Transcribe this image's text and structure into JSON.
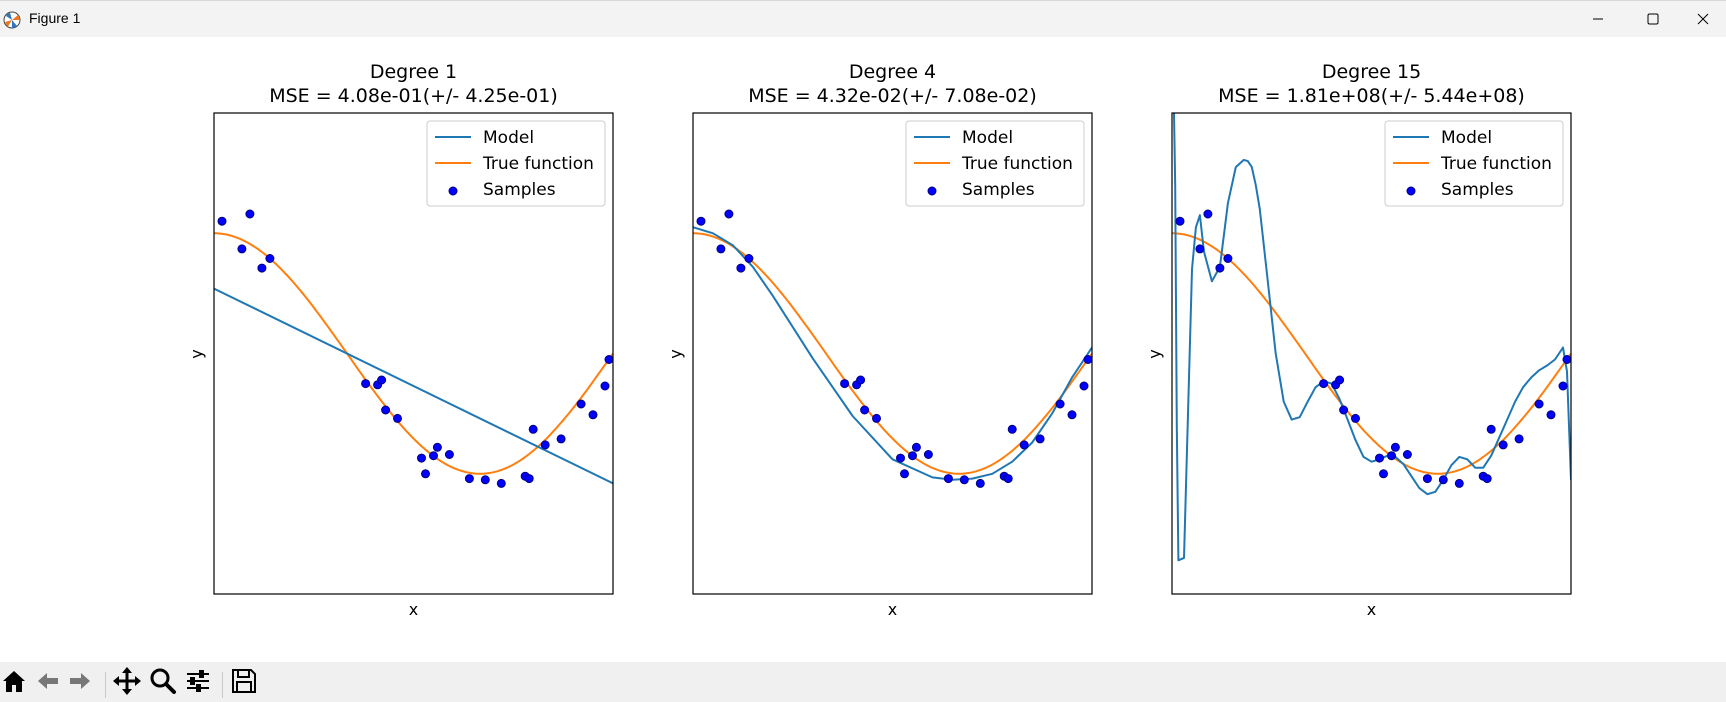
{
  "window": {
    "title": "Figure 1"
  },
  "window_controls": {
    "minimize": "minimize-icon",
    "maximize": "maximize-icon",
    "close": "close-icon"
  },
  "toolbar": {
    "buttons": [
      "home-icon",
      "back-arrow-icon",
      "forward-arrow-icon",
      "pan-move-icon",
      "zoom-magnifier-icon",
      "configure-subplots-icon",
      "save-floppy-icon"
    ]
  },
  "colors": {
    "model": "#1f77b4",
    "true_function": "#ff7f0e",
    "samples_face": "#0000ff",
    "samples_edge": "#000080"
  },
  "chart_data": [
    {
      "type": "line",
      "title": "Degree 1",
      "subtitle": "MSE = 4.08e-01(+/- 4.25e-01)",
      "xlabel": "x",
      "ylabel": "y",
      "xlim": [
        0,
        1
      ],
      "ylim": [
        -2,
        2
      ],
      "ticks_visible": false,
      "grid": false,
      "legend_position": "top-right",
      "legend": [
        "Model",
        "True function",
        "Samples"
      ],
      "series": [
        {
          "name": "Model",
          "kind": "line",
          "x": [
            0,
            1
          ],
          "y": [
            0.54,
            -1.08
          ]
        },
        {
          "name": "True function",
          "kind": "function",
          "expr": "cos(1.5*pi*x)"
        },
        {
          "name": "Samples",
          "kind": "scatter",
          "x": [
            0.02,
            0.07,
            0.09,
            0.12,
            0.14,
            0.38,
            0.41,
            0.42,
            0.43,
            0.46,
            0.52,
            0.53,
            0.55,
            0.56,
            0.59,
            0.64,
            0.68,
            0.72,
            0.78,
            0.79,
            0.8,
            0.83,
            0.87,
            0.92,
            0.95,
            0.98,
            0.99
          ],
          "y": [
            1.1,
            0.87,
            1.16,
            0.71,
            0.79,
            -0.25,
            -0.26,
            -0.22,
            -0.47,
            -0.54,
            -0.87,
            -1.0,
            -0.85,
            -0.78,
            -0.84,
            -1.04,
            -1.05,
            -1.08,
            -1.02,
            -1.04,
            -0.63,
            -0.76,
            -0.71,
            -0.42,
            -0.51,
            -0.27,
            -0.05
          ]
        }
      ]
    },
    {
      "type": "line",
      "title": "Degree 4",
      "subtitle": "MSE = 4.32e-02(+/- 7.08e-02)",
      "xlabel": "x",
      "ylabel": "y",
      "xlim": [
        0,
        1
      ],
      "ylim": [
        -2,
        2
      ],
      "ticks_visible": false,
      "grid": false,
      "legend_position": "top-right",
      "legend": [
        "Model",
        "True function",
        "Samples"
      ],
      "series": [
        {
          "name": "Model",
          "kind": "line",
          "x": [
            0,
            0.05,
            0.1,
            0.15,
            0.2,
            0.3,
            0.4,
            0.5,
            0.6,
            0.65,
            0.7,
            0.75,
            0.8,
            0.85,
            0.9,
            0.95,
            1.0
          ],
          "y": [
            1.05,
            1.0,
            0.9,
            0.72,
            0.48,
            -0.04,
            -0.52,
            -0.88,
            -1.03,
            -1.05,
            -1.04,
            -1.0,
            -0.9,
            -0.74,
            -0.5,
            -0.2,
            0.05
          ]
        },
        {
          "name": "True function",
          "kind": "function",
          "expr": "cos(1.5*pi*x)"
        },
        {
          "name": "Samples",
          "kind": "scatter",
          "x": [
            0.02,
            0.07,
            0.09,
            0.12,
            0.14,
            0.38,
            0.41,
            0.42,
            0.43,
            0.46,
            0.52,
            0.53,
            0.55,
            0.56,
            0.59,
            0.64,
            0.68,
            0.72,
            0.78,
            0.79,
            0.8,
            0.83,
            0.87,
            0.92,
            0.95,
            0.98,
            0.99
          ],
          "y": [
            1.1,
            0.87,
            1.16,
            0.71,
            0.79,
            -0.25,
            -0.26,
            -0.22,
            -0.47,
            -0.54,
            -0.87,
            -1.0,
            -0.85,
            -0.78,
            -0.84,
            -1.04,
            -1.05,
            -1.08,
            -1.02,
            -1.04,
            -0.63,
            -0.76,
            -0.71,
            -0.42,
            -0.51,
            -0.27,
            -0.05
          ]
        }
      ]
    },
    {
      "type": "line",
      "title": "Degree 15",
      "subtitle": "MSE = 1.81e+08(+/- 5.44e+08)",
      "xlabel": "x",
      "ylabel": "y",
      "xlim": [
        0,
        1
      ],
      "ylim": [
        -2,
        2
      ],
      "ticks_visible": false,
      "grid": false,
      "legend_position": "top-right",
      "legend": [
        "Model",
        "True function",
        "Samples"
      ],
      "series": [
        {
          "name": "Model",
          "kind": "line",
          "x": [
            0.0,
            0.008,
            0.012,
            0.016,
            0.03,
            0.04,
            0.05,
            0.06,
            0.07,
            0.08,
            0.1,
            0.12,
            0.14,
            0.16,
            0.18,
            0.19,
            0.2,
            0.21,
            0.22,
            0.24,
            0.26,
            0.28,
            0.3,
            0.32,
            0.34,
            0.36,
            0.38,
            0.4,
            0.42,
            0.44,
            0.46,
            0.48,
            0.5,
            0.52,
            0.54,
            0.56,
            0.58,
            0.6,
            0.62,
            0.64,
            0.66,
            0.68,
            0.7,
            0.72,
            0.74,
            0.76,
            0.78,
            0.8,
            0.82,
            0.84,
            0.86,
            0.88,
            0.9,
            0.92,
            0.94,
            0.96,
            0.97,
            0.98,
            0.99,
            0.995,
            1.0
          ],
          "y": [
            3.0,
            1.4,
            -0.6,
            -1.72,
            -1.7,
            -0.5,
            0.7,
            1.05,
            1.15,
            0.85,
            0.6,
            0.72,
            1.25,
            1.55,
            1.61,
            1.6,
            1.55,
            1.4,
            1.2,
            0.6,
            0.0,
            -0.4,
            -0.55,
            -0.53,
            -0.4,
            -0.28,
            -0.23,
            -0.25,
            -0.38,
            -0.55,
            -0.72,
            -0.86,
            -0.9,
            -0.88,
            -0.85,
            -0.86,
            -0.92,
            -1.02,
            -1.12,
            -1.17,
            -1.15,
            -1.05,
            -0.93,
            -0.86,
            -0.88,
            -0.95,
            -0.95,
            -0.85,
            -0.7,
            -0.55,
            -0.4,
            -0.28,
            -0.2,
            -0.14,
            -0.1,
            -0.05,
            0.0,
            0.05,
            -0.15,
            -0.6,
            -1.05
          ]
        },
        {
          "name": "True function",
          "kind": "function",
          "expr": "cos(1.5*pi*x)"
        },
        {
          "name": "Samples",
          "kind": "scatter",
          "x": [
            0.02,
            0.07,
            0.09,
            0.12,
            0.14,
            0.38,
            0.41,
            0.42,
            0.43,
            0.46,
            0.52,
            0.53,
            0.55,
            0.56,
            0.59,
            0.64,
            0.68,
            0.72,
            0.78,
            0.79,
            0.8,
            0.83,
            0.87,
            0.92,
            0.95,
            0.98,
            0.99
          ],
          "y": [
            1.1,
            0.87,
            1.16,
            0.71,
            0.79,
            -0.25,
            -0.26,
            -0.22,
            -0.47,
            -0.54,
            -0.87,
            -1.0,
            -0.85,
            -0.78,
            -0.84,
            -1.04,
            -1.05,
            -1.08,
            -1.02,
            -1.04,
            -0.63,
            -0.76,
            -0.71,
            -0.42,
            -0.51,
            -0.27,
            -0.05
          ]
        }
      ]
    }
  ]
}
